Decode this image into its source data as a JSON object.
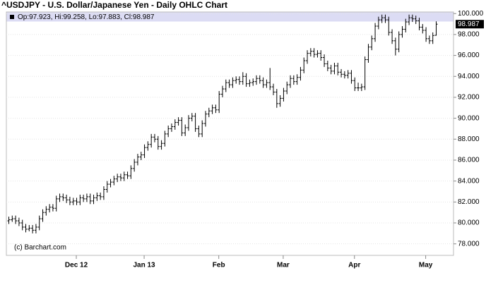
{
  "chart_data": {
    "type": "ohlc",
    "title": "^USDJPY - U.S. Dollar/Japanese Yen - Daily OHLC Chart",
    "legend": "Op:97.923, Hi:99.258, Lo:97.883, Cl:98.987",
    "watermark": "(c) Barchart.com",
    "color": "#000000",
    "grid": true,
    "categories": [
      null,
      null,
      null,
      null,
      null,
      null,
      null,
      null,
      null,
      null,
      null,
      null,
      null,
      null,
      null,
      null,
      null,
      null,
      null,
      null,
      "Dec 12",
      null,
      null,
      null,
      null,
      null,
      null,
      null,
      null,
      null,
      null,
      null,
      null,
      null,
      null,
      null,
      null,
      null,
      null,
      null,
      "Jan 13",
      null,
      null,
      null,
      null,
      null,
      null,
      null,
      null,
      null,
      null,
      null,
      null,
      null,
      null,
      null,
      null,
      null,
      null,
      null,
      null,
      null,
      "Feb",
      null,
      null,
      null,
      null,
      null,
      null,
      null,
      null,
      null,
      null,
      null,
      null,
      null,
      null,
      null,
      null,
      null,
      null,
      "Mar",
      null,
      null,
      null,
      null,
      null,
      null,
      null,
      null,
      null,
      null,
      null,
      null,
      null,
      null,
      null,
      null,
      null,
      null,
      null,
      null,
      "Apr",
      null,
      null,
      null,
      null,
      null,
      null,
      null,
      null,
      null,
      null,
      null,
      null,
      null,
      null,
      null,
      null,
      null,
      null,
      null,
      null,
      "May",
      null,
      null,
      null
    ],
    "ohlc": [
      [
        80.2,
        80.6,
        79.9,
        80.3
      ],
      [
        80.3,
        80.7,
        80.1,
        80.4
      ],
      [
        80.4,
        80.7,
        79.9,
        80.2
      ],
      [
        80.2,
        80.5,
        79.7,
        80.0
      ],
      [
        80.0,
        80.3,
        79.3,
        79.6
      ],
      [
        79.6,
        79.9,
        79.1,
        79.4
      ],
      [
        79.4,
        79.8,
        79.2,
        79.5
      ],
      [
        79.5,
        79.8,
        79.0,
        79.3
      ],
      [
        79.3,
        79.9,
        79.0,
        79.6
      ],
      [
        79.6,
        80.7,
        79.3,
        80.4
      ],
      [
        80.4,
        81.3,
        80.1,
        81.0
      ],
      [
        81.0,
        81.6,
        80.7,
        81.3
      ],
      [
        81.3,
        81.8,
        81.0,
        81.5
      ],
      [
        81.5,
        81.8,
        81.1,
        81.4
      ],
      [
        81.4,
        82.6,
        81.1,
        82.3
      ],
      [
        82.3,
        82.8,
        82.0,
        82.5
      ],
      [
        82.5,
        82.8,
        82.1,
        82.4
      ],
      [
        82.4,
        82.7,
        81.9,
        82.2
      ],
      [
        82.2,
        82.5,
        81.7,
        82.0
      ],
      [
        82.0,
        82.4,
        81.7,
        82.1
      ],
      [
        82.1,
        82.4,
        81.7,
        82.0
      ],
      [
        82.0,
        82.7,
        81.7,
        82.4
      ],
      [
        82.4,
        82.7,
        82.0,
        82.3
      ],
      [
        82.3,
        82.8,
        82.0,
        82.5
      ],
      [
        82.5,
        82.8,
        81.8,
        82.1
      ],
      [
        82.1,
        82.7,
        81.8,
        82.4
      ],
      [
        82.4,
        82.9,
        82.1,
        82.6
      ],
      [
        82.6,
        82.9,
        82.2,
        82.5
      ],
      [
        82.5,
        83.5,
        82.2,
        83.2
      ],
      [
        83.2,
        84.0,
        82.9,
        83.7
      ],
      [
        83.7,
        84.2,
        83.4,
        83.9
      ],
      [
        83.9,
        84.5,
        83.6,
        84.2
      ],
      [
        84.2,
        84.7,
        83.9,
        84.4
      ],
      [
        84.4,
        84.7,
        84.0,
        84.3
      ],
      [
        84.3,
        84.9,
        84.0,
        84.6
      ],
      [
        84.6,
        84.9,
        84.2,
        84.5
      ],
      [
        84.5,
        85.5,
        84.2,
        85.2
      ],
      [
        85.2,
        86.1,
        84.9,
        85.8
      ],
      [
        85.8,
        86.6,
        85.5,
        86.3
      ],
      [
        86.3,
        86.8,
        86.0,
        86.5
      ],
      [
        86.5,
        87.5,
        86.2,
        87.2
      ],
      [
        87.2,
        87.8,
        86.9,
        87.5
      ],
      [
        87.5,
        88.5,
        87.2,
        88.2
      ],
      [
        88.2,
        88.5,
        87.7,
        88.0
      ],
      [
        88.0,
        88.3,
        87.0,
        87.3
      ],
      [
        87.3,
        87.9,
        87.0,
        87.6
      ],
      [
        87.6,
        88.8,
        87.3,
        88.5
      ],
      [
        88.5,
        89.3,
        88.2,
        89.0
      ],
      [
        89.0,
        89.5,
        88.7,
        89.2
      ],
      [
        89.2,
        89.9,
        88.9,
        89.6
      ],
      [
        89.6,
        90.1,
        89.3,
        89.8
      ],
      [
        89.8,
        90.1,
        88.3,
        88.6
      ],
      [
        88.6,
        89.4,
        88.3,
        89.1
      ],
      [
        89.1,
        90.3,
        88.8,
        90.0
      ],
      [
        90.0,
        90.5,
        89.7,
        90.2
      ],
      [
        90.2,
        90.5,
        88.7,
        89.0
      ],
      [
        89.0,
        89.3,
        88.2,
        88.5
      ],
      [
        88.5,
        89.8,
        88.2,
        89.5
      ],
      [
        89.5,
        90.7,
        89.2,
        90.4
      ],
      [
        90.4,
        91.0,
        90.1,
        90.7
      ],
      [
        90.7,
        91.3,
        90.4,
        91.0
      ],
      [
        91.0,
        91.3,
        90.5,
        90.8
      ],
      [
        90.8,
        92.6,
        90.5,
        92.3
      ],
      [
        92.3,
        93.1,
        92.0,
        92.8
      ],
      [
        92.8,
        93.7,
        92.5,
        93.4
      ],
      [
        93.4,
        93.7,
        92.9,
        93.2
      ],
      [
        93.2,
        93.9,
        92.9,
        93.6
      ],
      [
        93.6,
        94.0,
        93.3,
        93.7
      ],
      [
        93.7,
        94.0,
        93.2,
        93.5
      ],
      [
        93.5,
        94.4,
        93.2,
        94.0
      ],
      [
        94.0,
        94.3,
        93.0,
        93.3
      ],
      [
        93.3,
        93.7,
        93.0,
        93.4
      ],
      [
        93.4,
        93.8,
        93.1,
        93.5
      ],
      [
        93.5,
        94.1,
        93.2,
        93.8
      ],
      [
        93.8,
        94.1,
        93.3,
        93.6
      ],
      [
        93.6,
        93.9,
        92.9,
        93.2
      ],
      [
        93.2,
        93.7,
        92.9,
        93.4
      ],
      [
        93.4,
        94.8,
        92.7,
        93.0
      ],
      [
        93.0,
        93.3,
        92.2,
        92.5
      ],
      [
        92.5,
        92.8,
        91.0,
        91.4
      ],
      [
        91.4,
        92.2,
        91.1,
        91.9
      ],
      [
        91.9,
        92.9,
        91.6,
        92.6
      ],
      [
        92.6,
        93.5,
        92.3,
        93.2
      ],
      [
        93.2,
        94.1,
        92.9,
        93.8
      ],
      [
        93.8,
        94.1,
        93.2,
        93.5
      ],
      [
        93.5,
        94.2,
        93.2,
        93.9
      ],
      [
        93.9,
        94.9,
        93.6,
        94.6
      ],
      [
        94.6,
        95.8,
        94.3,
        95.5
      ],
      [
        95.5,
        96.5,
        95.2,
        96.2
      ],
      [
        96.2,
        96.7,
        95.9,
        96.4
      ],
      [
        96.4,
        96.7,
        95.8,
        96.1
      ],
      [
        96.1,
        96.5,
        95.8,
        96.2
      ],
      [
        96.2,
        96.5,
        95.5,
        95.8
      ],
      [
        95.8,
        96.1,
        94.9,
        95.2
      ],
      [
        95.2,
        95.5,
        94.5,
        94.8
      ],
      [
        94.8,
        95.1,
        94.2,
        94.5
      ],
      [
        94.5,
        95.3,
        94.2,
        95.0
      ],
      [
        95.0,
        95.3,
        94.1,
        94.4
      ],
      [
        94.4,
        94.7,
        93.9,
        94.2
      ],
      [
        94.2,
        94.5,
        93.8,
        94.1
      ],
      [
        94.1,
        94.6,
        93.8,
        94.3
      ],
      [
        94.3,
        94.6,
        93.3,
        93.6
      ],
      [
        93.6,
        93.9,
        92.6,
        92.9
      ],
      [
        92.9,
        93.4,
        92.6,
        92.9
      ],
      [
        92.9,
        93.3,
        92.6,
        93.0
      ],
      [
        93.0,
        95.9,
        92.7,
        95.6
      ],
      [
        95.6,
        97.1,
        95.3,
        96.8
      ],
      [
        96.8,
        97.9,
        96.5,
        97.6
      ],
      [
        97.6,
        99.1,
        97.3,
        98.8
      ],
      [
        98.8,
        99.7,
        98.5,
        99.4
      ],
      [
        99.4,
        99.9,
        99.1,
        99.6
      ],
      [
        99.6,
        99.9,
        99.1,
        99.4
      ],
      [
        99.4,
        99.7,
        97.9,
        98.2
      ],
      [
        98.2,
        98.5,
        97.1,
        97.4
      ],
      [
        97.4,
        97.7,
        96.0,
        96.6
      ],
      [
        96.6,
        98.3,
        96.3,
        98.0
      ],
      [
        98.0,
        98.8,
        97.7,
        98.5
      ],
      [
        98.5,
        99.5,
        98.2,
        99.2
      ],
      [
        99.2,
        99.9,
        98.9,
        99.6
      ],
      [
        99.6,
        99.9,
        99.2,
        99.5
      ],
      [
        99.5,
        99.8,
        99.0,
        99.3
      ],
      [
        99.3,
        99.6,
        98.4,
        98.7
      ],
      [
        98.7,
        99.0,
        98.1,
        98.4
      ],
      [
        98.4,
        98.7,
        97.3,
        97.6
      ],
      [
        97.6,
        97.9,
        97.1,
        97.4
      ],
      [
        97.4,
        98.2,
        97.1,
        97.9
      ],
      [
        97.923,
        99.258,
        97.883,
        98.987
      ]
    ],
    "ylim": [
      76.9,
      100.15
    ],
    "yticks": [
      {
        "value": 78,
        "label": "78.000"
      },
      {
        "value": 80,
        "label": "80.000"
      },
      {
        "value": 82,
        "label": "82.000"
      },
      {
        "value": 84,
        "label": "84.000"
      },
      {
        "value": 86,
        "label": "86.000"
      },
      {
        "value": 88,
        "label": "88.000"
      },
      {
        "value": 90,
        "label": "90.000"
      },
      {
        "value": 92,
        "label": "92.000"
      },
      {
        "value": 94,
        "label": "94.000"
      },
      {
        "value": 96,
        "label": "96.000"
      },
      {
        "value": 98,
        "label": "98.000"
      },
      {
        "value": 100,
        "label": "100.000"
      }
    ]
  }
}
